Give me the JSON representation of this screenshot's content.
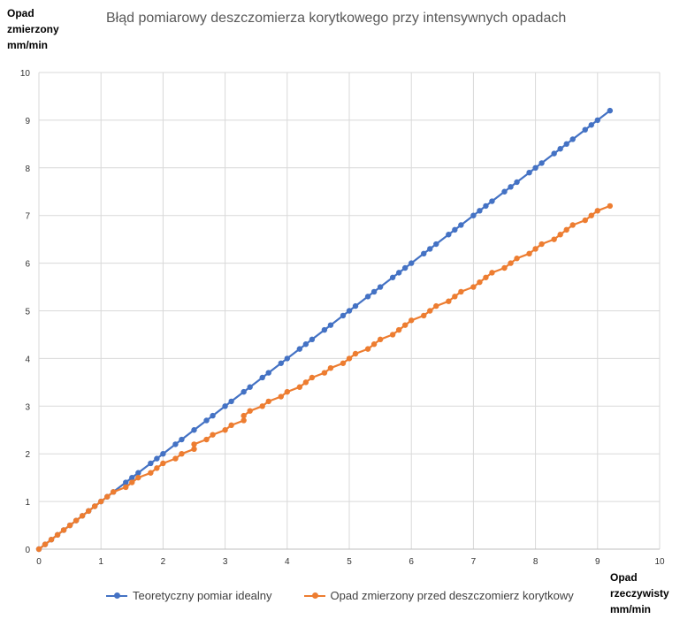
{
  "chart_data": {
    "type": "line",
    "title": "Błąd pomiarowy deszczomierza korytkowego przy intensywnych opadach",
    "ylabel_lines": [
      "Opad",
      "zmierzony",
      "mm/min"
    ],
    "xlabel_lines": [
      "Opad",
      "rzeczywisty",
      "mm/min"
    ],
    "xlim": [
      0,
      10
    ],
    "ylim": [
      0,
      10
    ],
    "xticks": [
      "0",
      "1",
      "2",
      "3",
      "4",
      "5",
      "6",
      "7",
      "8",
      "9",
      "10"
    ],
    "yticks": [
      "0",
      "1",
      "2",
      "3",
      "4",
      "5",
      "6",
      "7",
      "8",
      "9",
      "10"
    ],
    "grid": true,
    "legend_position": "bottom",
    "series": [
      {
        "name": "Teoretyczny pomiar idealny",
        "color": "#4472C4",
        "x": [
          0,
          0.1,
          0.2,
          0.3,
          0.4,
          0.5,
          0.6,
          0.7,
          0.8,
          0.9,
          1.0,
          1.1,
          1.2,
          1.4,
          1.5,
          1.6,
          1.8,
          1.9,
          2.0,
          2.2,
          2.3,
          2.5,
          2.7,
          2.8,
          3.0,
          3.1,
          3.3,
          3.4,
          3.6,
          3.7,
          3.9,
          4.0,
          4.2,
          4.3,
          4.4,
          4.6,
          4.7,
          4.9,
          5.0,
          5.1,
          5.3,
          5.4,
          5.5,
          5.7,
          5.8,
          5.9,
          6.0,
          6.2,
          6.3,
          6.4,
          6.6,
          6.7,
          6.8,
          7.0,
          7.1,
          7.2,
          7.3,
          7.5,
          7.6,
          7.7,
          7.9,
          8.0,
          8.1,
          8.3,
          8.4,
          8.5,
          8.6,
          8.8,
          8.9,
          9.0,
          9.2
        ],
        "y": [
          0,
          0.1,
          0.2,
          0.3,
          0.4,
          0.5,
          0.6,
          0.7,
          0.8,
          0.9,
          1.0,
          1.1,
          1.2,
          1.4,
          1.5,
          1.6,
          1.8,
          1.9,
          2.0,
          2.2,
          2.3,
          2.5,
          2.7,
          2.8,
          3.0,
          3.1,
          3.3,
          3.4,
          3.6,
          3.7,
          3.9,
          4.0,
          4.2,
          4.3,
          4.4,
          4.6,
          4.7,
          4.9,
          5.0,
          5.1,
          5.3,
          5.4,
          5.5,
          5.7,
          5.8,
          5.9,
          6.0,
          6.2,
          6.3,
          6.4,
          6.6,
          6.7,
          6.8,
          7.0,
          7.1,
          7.2,
          7.3,
          7.5,
          7.6,
          7.7,
          7.9,
          8.0,
          8.1,
          8.3,
          8.4,
          8.5,
          8.6,
          8.8,
          8.9,
          9.0,
          9.2
        ]
      },
      {
        "name": "Opad zmierzony przed deszczomierz korytkowy",
        "color": "#ED7D31",
        "x": [
          0,
          0.1,
          0.2,
          0.3,
          0.4,
          0.5,
          0.6,
          0.7,
          0.8,
          0.9,
          1.0,
          1.1,
          1.2,
          1.4,
          1.5,
          1.6,
          1.8,
          1.9,
          2.0,
          2.2,
          2.3,
          2.5,
          2.5,
          2.7,
          2.8,
          3.0,
          3.1,
          3.3,
          3.3,
          3.4,
          3.6,
          3.7,
          3.9,
          4.0,
          4.2,
          4.3,
          4.4,
          4.6,
          4.7,
          4.9,
          5.0,
          5.1,
          5.3,
          5.4,
          5.5,
          5.7,
          5.8,
          5.9,
          6.0,
          6.2,
          6.3,
          6.4,
          6.6,
          6.7,
          6.8,
          7.0,
          7.1,
          7.2,
          7.3,
          7.5,
          7.6,
          7.7,
          7.9,
          8.0,
          8.1,
          8.3,
          8.4,
          8.5,
          8.6,
          8.8,
          8.9,
          9.0,
          9.2
        ],
        "y": [
          0,
          0.1,
          0.2,
          0.3,
          0.4,
          0.5,
          0.6,
          0.7,
          0.8,
          0.9,
          1.0,
          1.1,
          1.2,
          1.3,
          1.4,
          1.5,
          1.6,
          1.7,
          1.8,
          1.9,
          2.0,
          2.1,
          2.2,
          2.3,
          2.4,
          2.5,
          2.6,
          2.7,
          2.8,
          2.9,
          3.0,
          3.1,
          3.2,
          3.3,
          3.4,
          3.5,
          3.6,
          3.7,
          3.8,
          3.9,
          4.0,
          4.1,
          4.2,
          4.3,
          4.4,
          4.5,
          4.6,
          4.7,
          4.8,
          4.9,
          5.0,
          5.1,
          5.2,
          5.3,
          5.4,
          5.5,
          5.6,
          5.7,
          5.8,
          5.9,
          6.0,
          6.1,
          6.2,
          6.3,
          6.4,
          6.5,
          6.6,
          6.7,
          6.8,
          6.9,
          7.0,
          7.1,
          7.2
        ]
      }
    ]
  }
}
